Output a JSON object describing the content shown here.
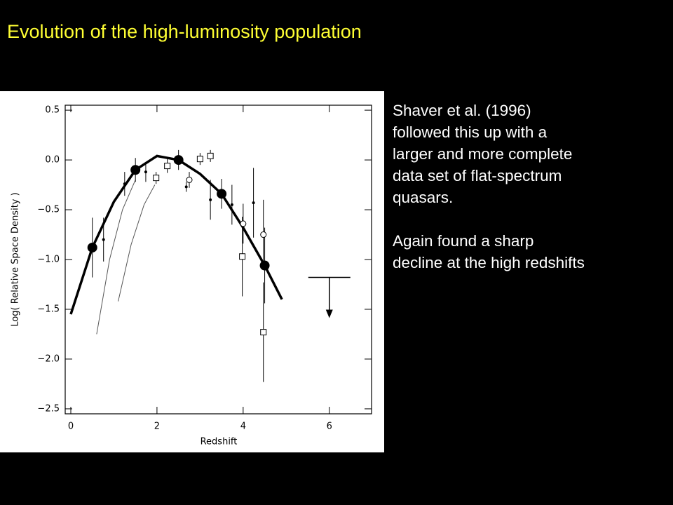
{
  "header": {
    "title": "Evolution of the high-luminosity population"
  },
  "body": {
    "paragraphs": [
      [
        "Shaver et al. (1996)",
        "followed this up with a",
        "larger and more complete",
        "data set of flat-spectrum",
        "quasars."
      ],
      [
        "Again found a sharp",
        "decline at the high redshifts"
      ]
    ]
  },
  "chart_data": {
    "type": "scatter",
    "x_label": "Redshift",
    "y_label": "Log( Relative Space Density )",
    "xlim": [
      -0.13,
      6.98
    ],
    "ylim": [
      -2.55,
      0.55
    ],
    "xticks": [
      0,
      2,
      4,
      6
    ],
    "yticks": [
      0.5,
      {
        "value": 0,
        "label": "0.0"
      },
      {
        "value": -0.5,
        "label": "−0.5"
      },
      {
        "value": -1,
        "label": "−1.0"
      },
      {
        "value": -1.5,
        "label": "−1.5"
      },
      {
        "value": -2,
        "label": "−2.0"
      },
      {
        "value": -2.5,
        "label": "−2.5"
      }
    ],
    "color": "#000000",
    "series": [
      {
        "marker": "line",
        "width": 3.5,
        "color": "#000000",
        "x": [
          0,
          0.5,
          1,
          1.5,
          2,
          2.5,
          3,
          3.5,
          4,
          4.5,
          4.9
        ],
        "values": [
          -1.55,
          -0.88,
          -0.42,
          -0.1,
          0.04,
          0,
          -0.14,
          -0.34,
          -0.68,
          -1.06,
          -1.4
        ]
      },
      {
        "marker": "line",
        "width": 1,
        "color": "#555555",
        "x": [
          0.6,
          0.9,
          1.2,
          1.5
        ],
        "values": [
          -1.75,
          -1.0,
          -0.5,
          -0.2
        ]
      },
      {
        "marker": "line",
        "width": 1,
        "color": "#555555",
        "x": [
          1.1,
          1.4,
          1.7,
          1.95
        ],
        "values": [
          -1.42,
          -0.85,
          -0.45,
          -0.25
        ]
      },
      {
        "marker": "filled-circle",
        "x": [
          0.5,
          1.5,
          2.5,
          3.5,
          4.5
        ],
        "values": [
          -0.88,
          -0.1,
          0,
          -0.34,
          -1.06
        ],
        "errors": [
          0.3,
          0.12,
          0.1,
          0.15,
          0.38
        ]
      },
      {
        "marker": "dot",
        "x": [
          0.76,
          1.25,
          1.74,
          2.68,
          3.24,
          3.74,
          4.24
        ],
        "values": [
          -0.8,
          -0.24,
          -0.12,
          -0.27,
          -0.4,
          -0.45,
          -0.43
        ],
        "errors": [
          0.22,
          0.12,
          0.1,
          0.05,
          0.2,
          0.2,
          0.35
        ]
      },
      {
        "marker": "open-square",
        "x": [
          1.98,
          2.24,
          3.0,
          3.24,
          3.98,
          4.47
        ],
        "values": [
          -0.18,
          -0.06,
          0.01,
          0.04,
          -0.97,
          -1.73
        ],
        "errors": [
          0.06,
          0.07,
          0.06,
          0.06,
          0.4,
          0.5
        ]
      },
      {
        "marker": "open-circle",
        "x": [
          2.75,
          4.0,
          4.47
        ],
        "values": [
          -0.2,
          -0.64,
          -0.75
        ],
        "errors": [
          0.08,
          0.2,
          0.35
        ]
      },
      {
        "marker": "upper-limit",
        "x": [
          6
        ],
        "values": [
          -1.18
        ]
      }
    ]
  }
}
